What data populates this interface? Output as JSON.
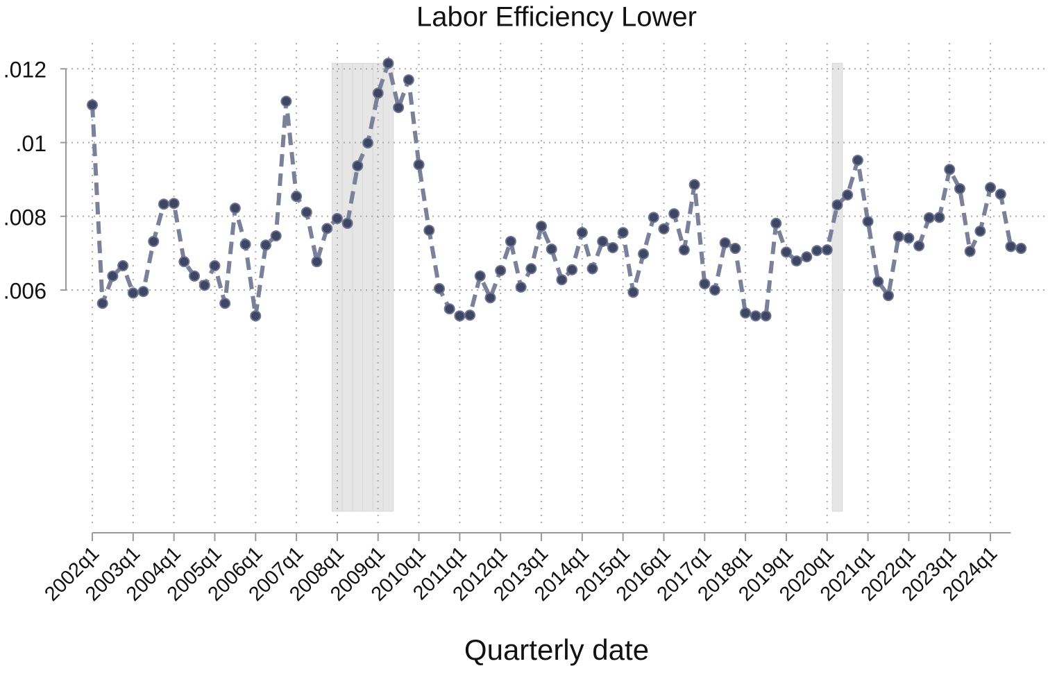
{
  "chart_data": {
    "type": "line",
    "title": "Labor Efficiency Lower",
    "x_label": "Quarterly date",
    "categories": [
      "2002q1",
      null,
      null,
      null,
      "2003q1",
      null,
      null,
      null,
      "2004q1",
      null,
      null,
      null,
      "2005q1",
      null,
      null,
      null,
      "2006q1",
      null,
      null,
      null,
      "2007q1",
      null,
      null,
      null,
      "2008q1",
      null,
      null,
      null,
      "2009q1",
      null,
      null,
      null,
      "2010q1",
      null,
      null,
      null,
      "2011q1",
      null,
      null,
      null,
      "2012q1",
      null,
      null,
      null,
      "2013q1",
      null,
      null,
      null,
      "2014q1",
      null,
      null,
      null,
      "2015q1",
      null,
      null,
      null,
      "2016q1",
      null,
      null,
      null,
      "2017q1",
      null,
      null,
      null,
      "2018q1",
      null,
      null,
      null,
      "2019q1",
      null,
      null,
      null,
      "2020q1",
      null,
      null,
      null,
      "2021q1",
      null,
      null,
      null,
      "2022q1",
      null,
      null,
      null,
      "2023q1",
      null,
      null,
      null,
      "2024q1",
      null,
      null,
      null
    ],
    "series": [
      {
        "color": "#7a8199",
        "marker_color": "#3e4663",
        "values": [
          0.01102,
          0.00564,
          0.00638,
          0.00666,
          0.00592,
          0.00596,
          0.00732,
          0.00833,
          0.00835,
          0.00677,
          0.00638,
          0.00613,
          0.00666,
          0.00564,
          0.00822,
          0.00724,
          0.0053,
          0.00722,
          0.00747,
          0.01112,
          0.00854,
          0.00811,
          0.00677,
          0.00767,
          0.00794,
          0.00781,
          0.00937,
          0.00999,
          0.01134,
          0.01215,
          0.01095,
          0.0117,
          0.0094,
          0.00762,
          0.00604,
          0.00549,
          0.0053,
          0.00532,
          0.00638,
          0.00579,
          0.00653,
          0.00732,
          0.00608,
          0.00658,
          0.00773,
          0.00711,
          0.00628,
          0.00655,
          0.00756,
          0.00658,
          0.00732,
          0.00715,
          0.00756,
          0.00594,
          0.00698,
          0.00797,
          0.00766,
          0.00807,
          0.00709,
          0.00886,
          0.00617,
          0.006,
          0.00728,
          0.00713,
          0.00538,
          0.0053,
          0.0053,
          0.00781,
          0.00703,
          0.00679,
          0.0069,
          0.00707,
          0.00709,
          0.00831,
          0.00858,
          0.00952,
          0.00786,
          0.00623,
          0.00585,
          0.00745,
          0.00741,
          0.0072,
          0.00796,
          0.00797,
          0.00927,
          0.00875,
          0.00705,
          0.0076,
          0.00878,
          0.0086,
          0.00718,
          0.00713
        ]
      }
    ],
    "bars": {
      "color": "#e6e6e6",
      "values": [
        null,
        null,
        null,
        null,
        null,
        null,
        null,
        null,
        null,
        null,
        null,
        null,
        null,
        null,
        null,
        null,
        null,
        null,
        null,
        null,
        null,
        null,
        null,
        null,
        0.01215,
        0.01215,
        0.01215,
        0.01215,
        0.01215,
        0.01215,
        null,
        null,
        null,
        null,
        null,
        null,
        null,
        null,
        null,
        null,
        null,
        null,
        null,
        null,
        null,
        null,
        null,
        null,
        null,
        null,
        null,
        null,
        null,
        null,
        null,
        null,
        null,
        null,
        null,
        null,
        null,
        null,
        null,
        null,
        null,
        null,
        null,
        null,
        null,
        null,
        null,
        null,
        null,
        0.01215,
        null,
        null,
        null,
        null,
        null,
        null,
        null,
        null,
        null,
        null,
        null,
        null,
        null,
        null,
        null,
        null,
        null,
        null
      ]
    },
    "ylim": [
      -0.00047,
      0.0127
    ],
    "yticks": [
      {
        "value": 0.006,
        "label": ".006"
      },
      {
        "value": 0.008,
        "label": ".008"
      },
      {
        "value": 0.01,
        "label": ".01"
      },
      {
        "value": 0.012,
        "label": ".012"
      }
    ],
    "grid": true
  }
}
